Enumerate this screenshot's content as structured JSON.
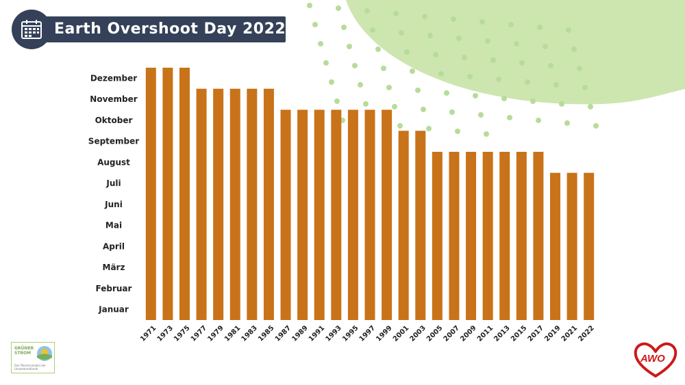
{
  "title": "Earth Overshoot Day 2022",
  "icons": {
    "title": "calendar-icon"
  },
  "logos": {
    "left": {
      "line1": "GRÜNER",
      "line2": "STROM",
      "small": "Das Ökostromlabel der Umweltverbände"
    },
    "right": {
      "text": "AWO"
    }
  },
  "colors": {
    "bar": "#c87319",
    "title_bg": "#354159",
    "deco_green": "#cde6b0",
    "dots": "#b7dc99",
    "awo_red": "#cc1a1a"
  },
  "chart_data": {
    "type": "bar",
    "title": "Earth Overshoot Day 2022",
    "y_categories": [
      "Januar",
      "Februar",
      "März",
      "April",
      "Mai",
      "Juni",
      "Juli",
      "August",
      "September",
      "Oktober",
      "November",
      "Dezember"
    ],
    "categories": [
      "1971",
      "1973",
      "1975",
      "1977",
      "1979",
      "1981",
      "1983",
      "1985",
      "1987",
      "1989",
      "1991",
      "1993",
      "1995",
      "1997",
      "1999",
      "2001",
      "2003",
      "2005",
      "2007",
      "2009",
      "2011",
      "2013",
      "2015",
      "2017",
      "2019",
      "2021",
      "2022"
    ],
    "values": [
      12,
      12,
      12,
      11,
      11,
      11,
      11,
      11,
      10,
      10,
      10,
      10,
      10,
      10,
      10,
      9,
      9,
      8,
      8,
      8,
      8,
      8,
      8,
      8,
      7,
      7,
      7
    ],
    "value_unit": "month index (1 = Januar, 12 = Dezember)",
    "ylim": [
      0,
      12
    ],
    "grid": false,
    "legend": "none"
  }
}
